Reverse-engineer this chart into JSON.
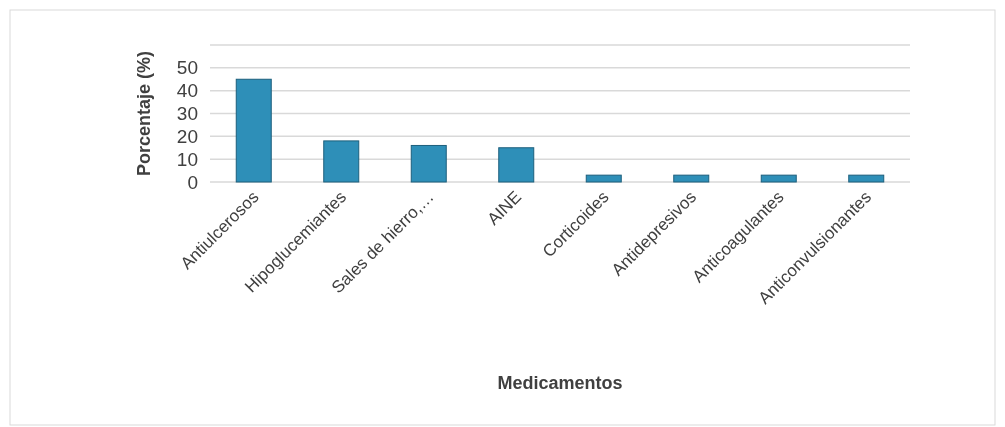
{
  "chart_data": {
    "type": "bar",
    "xlabel": "Medicamentos",
    "ylabel": "Porcentaje (%)",
    "categories": [
      "Antiulcerosos",
      "Hipoglucemiantes",
      "Sales de hierro,…",
      "AINE",
      "Corticoides",
      "Antidepresivos",
      "Anticoagulantes",
      "Anticonvulsionantes"
    ],
    "values": [
      45,
      18,
      16,
      15,
      3,
      3,
      3,
      3
    ],
    "color": "#2e8fb8",
    "ylim": [
      0,
      60
    ],
    "yticks": [
      0,
      10,
      20,
      30,
      40,
      50
    ],
    "grid": "y"
  }
}
